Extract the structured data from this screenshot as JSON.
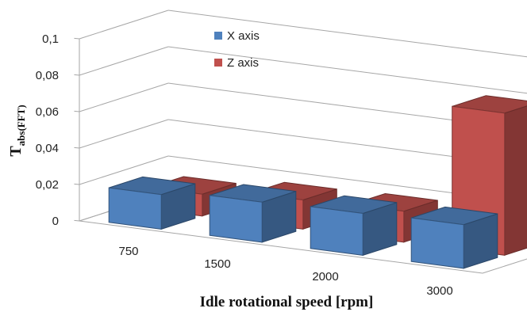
{
  "chart_data": {
    "type": "bar",
    "variant": "3d-clustered-bar",
    "categories": [
      "750",
      "1500",
      "2000",
      "3000"
    ],
    "series": [
      {
        "name": "X axis",
        "values": [
          0.019,
          0.022,
          0.023,
          0.024
        ],
        "color": "#4F81BD"
      },
      {
        "name": "Z axis",
        "values": [
          0.012,
          0.016,
          0.017,
          0.078
        ],
        "color": "#C0504D"
      }
    ],
    "y_ticks": [
      "0",
      "0,02",
      "0,04",
      "0,06",
      "0,08",
      "0,1"
    ],
    "ylim": [
      0,
      0.1
    ],
    "ylabel_main": "T",
    "ylabel_sub": "abs(FFT)",
    "xlabel": "Idle rotational speed [rpm]",
    "legend_position": "top-left inside plot",
    "grid": true
  }
}
